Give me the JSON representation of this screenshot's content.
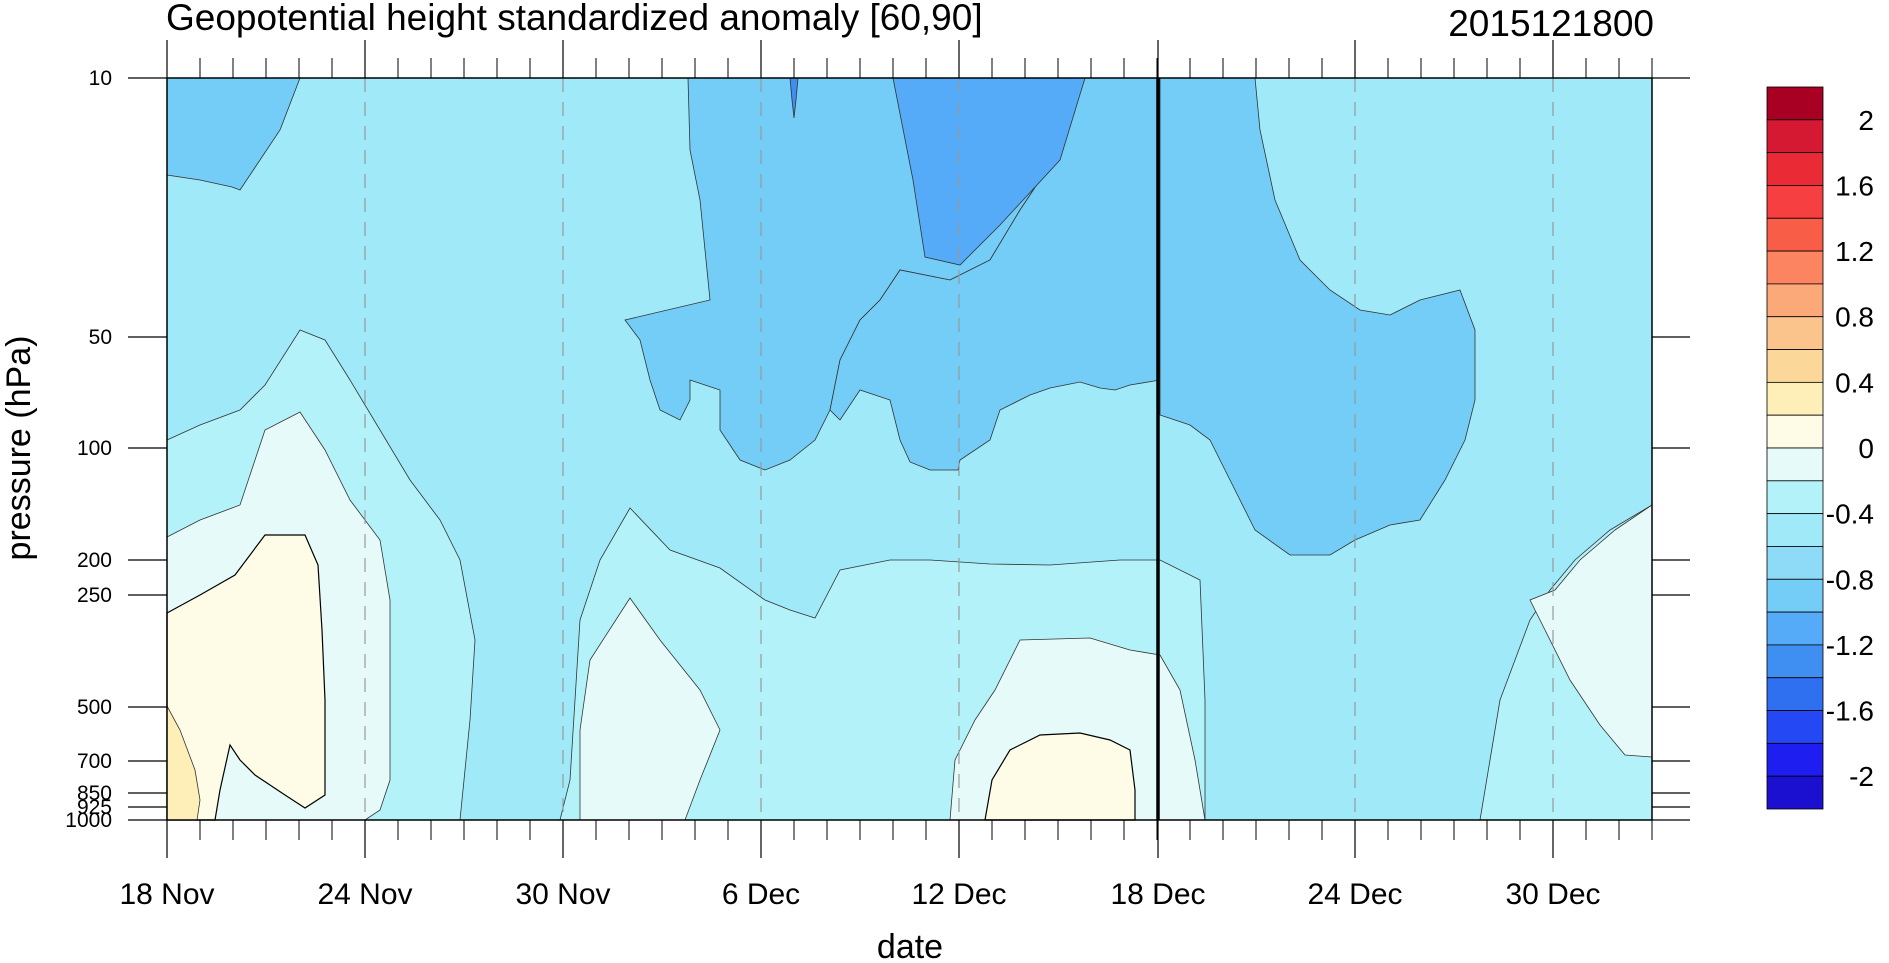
{
  "chart_data": {
    "type": "heatmap",
    "title": "Geopotential height standardized anomaly [60,90]",
    "subtitle_right": "2015121800",
    "xlabel": "date",
    "ylabel": "pressure (hPa)",
    "x_ticks": [
      "18 Nov",
      "24 Nov",
      "30 Nov",
      "6 Dec",
      "12 Dec",
      "18 Dec",
      "24 Dec",
      "30 Dec"
    ],
    "x_range": [
      "18 Nov",
      "2 Jan"
    ],
    "y_scale": "log-pressure (inverted)",
    "y_range": [
      1000,
      10
    ],
    "y_ticks": [
      "10",
      "50",
      "100",
      "200",
      "250",
      "500",
      "700",
      "850",
      "925",
      "1000"
    ],
    "y_tick_values": [
      10,
      50,
      100,
      200,
      250,
      500,
      700,
      850,
      925,
      1000
    ],
    "reference_line": {
      "date": "18 Dec",
      "description": "vertical line at analysis date"
    },
    "grid": "dashed vertical lines at 6-day intervals",
    "colorbar": {
      "levels": [
        -2.2,
        -2,
        -1.8,
        -1.6,
        -1.4,
        -1.2,
        -1,
        -0.8,
        -0.6,
        -0.4,
        -0.2,
        0,
        0.2,
        0.4,
        0.6,
        0.8,
        1,
        1.2,
        1.4,
        1.6,
        1.8,
        2,
        2.2
      ],
      "colors": [
        "#1c10d0",
        "#1f1ef0",
        "#2448f4",
        "#2e70f0",
        "#3f8ef2",
        "#56abf8",
        "#74cdf6",
        "#8ddbf7",
        "#9fe9f9",
        "#b3f2f9",
        "#e6fbf9",
        "#fefce6",
        "#fdefb7",
        "#fcd79a",
        "#fcc48d",
        "#fca97a",
        "#fc8460",
        "#f85d48",
        "#f63f40",
        "#ea2a35",
        "#d51932",
        "#a80022"
      ],
      "labels": [
        "2",
        "1.6",
        "1.2",
        "0.8",
        "0.4",
        "0",
        "-0.4",
        "-0.8",
        "-1.2",
        "-1.6",
        "-2"
      ]
    },
    "description_fields": {
      "upper_left_region": "anomaly about -1.0 to -1.2 near 10 hPa mid-Nov",
      "lower_left_region": "anomaly about 0 to 0.4 from 250 to 1000 hPa around 18-22 Nov",
      "upper_mid_region": "strongest negative anomaly about -1.4 near 10 hPa around 10-15 Dec",
      "lower_mid_region": "anomaly near 0 to 0.2 around 13-16 Dec below 500 hPa",
      "right_region": "anomaly about -1.0 to -1.2 between 50 and 250 hPa after 18 Dec"
    }
  }
}
